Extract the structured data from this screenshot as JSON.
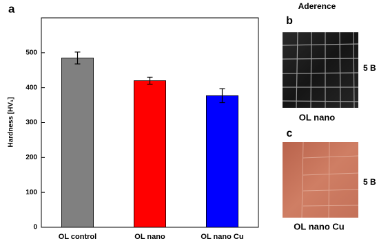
{
  "panel_labels": [
    "a",
    "b",
    "c"
  ],
  "aderence_title": "Aderence",
  "photos": [
    {
      "label": "OL nano",
      "rating": "5 B"
    },
    {
      "label": "OL nano Cu",
      "rating": "5 B"
    }
  ],
  "chart_data": {
    "type": "bar",
    "y_label": "Hardness [HV₁]",
    "categories": [
      "OL control",
      "OL nano",
      "OL nano Cu"
    ],
    "values": [
      485,
      420,
      377
    ],
    "errors": [
      17,
      10,
      20
    ],
    "colors": [
      "#808080",
      "#ff0000",
      "#0000ff"
    ],
    "ylim": [
      0,
      600
    ],
    "yticks": [
      0,
      100,
      200,
      300,
      400,
      500
    ]
  }
}
